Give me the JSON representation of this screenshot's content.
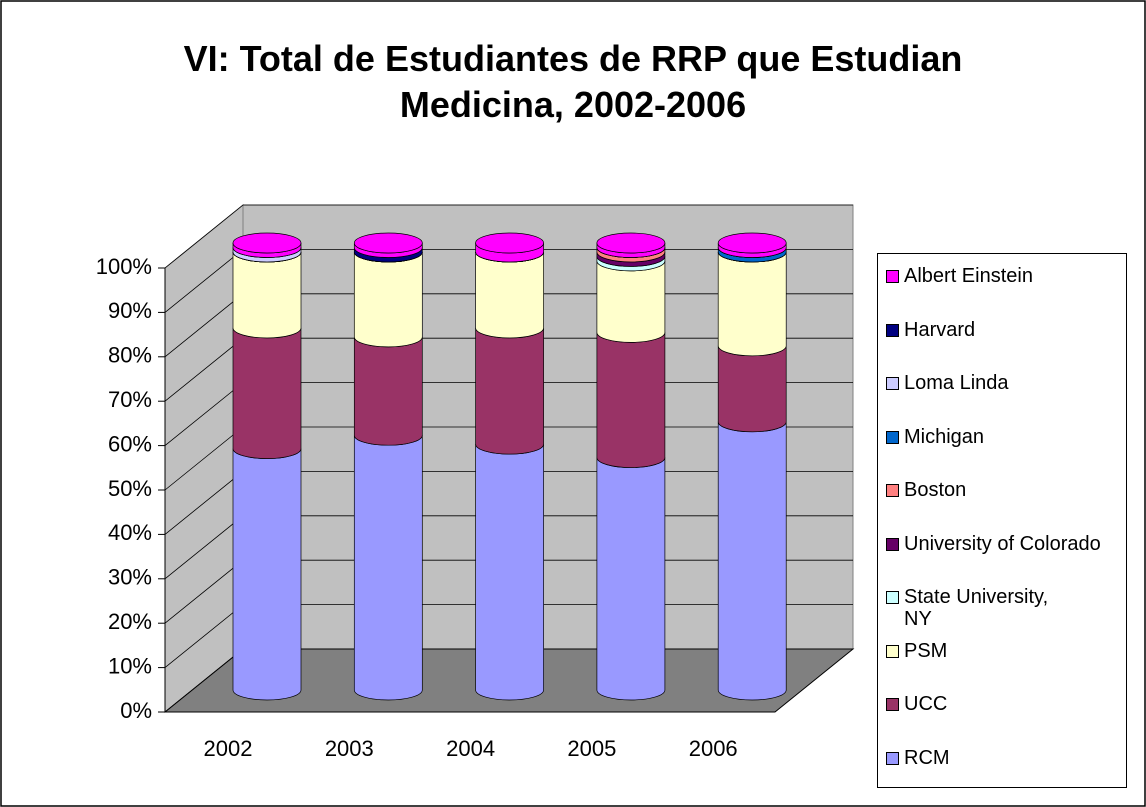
{
  "chart_data": {
    "type": "bar",
    "stacked": true,
    "percent": true,
    "title": "VI: Total de Estudiantes de RRP que Estudian Medicina, 2002-2006",
    "categories": [
      "2002",
      "2003",
      "2004",
      "2005",
      "2006"
    ],
    "ylim": [
      0,
      100
    ],
    "yticks": [
      {
        "value": 0,
        "label": "0%"
      },
      {
        "value": 10,
        "label": "10%"
      },
      {
        "value": 20,
        "label": "20%"
      },
      {
        "value": 30,
        "label": "30%"
      },
      {
        "value": 40,
        "label": "40%"
      },
      {
        "value": 50,
        "label": "50%"
      },
      {
        "value": 60,
        "label": "60%"
      },
      {
        "value": 70,
        "label": "70%"
      },
      {
        "value": 80,
        "label": "80%"
      },
      {
        "value": 90,
        "label": "90%"
      },
      {
        "value": 100,
        "label": "100%"
      }
    ],
    "grid": true,
    "legend": "right",
    "series": [
      {
        "name": "RCM",
        "color": "#9999ff",
        "values": [
          54,
          57,
          55,
          52,
          60
        ]
      },
      {
        "name": "UCC",
        "color": "#993366",
        "values": [
          27,
          22,
          26,
          28,
          17
        ]
      },
      {
        "name": "PSM",
        "color": "#ffffcc",
        "values": [
          17,
          19,
          17,
          16,
          21
        ]
      },
      {
        "name": "State University, NY",
        "color": "#ccffff",
        "values": [
          0,
          0,
          0,
          1,
          0
        ]
      },
      {
        "name": "University of Colorado",
        "color": "#660066",
        "values": [
          0,
          0,
          0,
          1,
          0
        ]
      },
      {
        "name": "Boston",
        "color": "#ff8080",
        "values": [
          0,
          0,
          0,
          1,
          0
        ]
      },
      {
        "name": "Michigan",
        "color": "#0066cc",
        "values": [
          0,
          0,
          0,
          0,
          1
        ]
      },
      {
        "name": "Loma Linda",
        "color": "#ccccff",
        "values": [
          1,
          0,
          0,
          0,
          0
        ]
      },
      {
        "name": "Harvard",
        "color": "#000080",
        "values": [
          0,
          1,
          0,
          0,
          0
        ]
      },
      {
        "name": "Albert Einstein",
        "color": "#ff00ff",
        "values": [
          1,
          1,
          2,
          1,
          1
        ]
      }
    ]
  }
}
